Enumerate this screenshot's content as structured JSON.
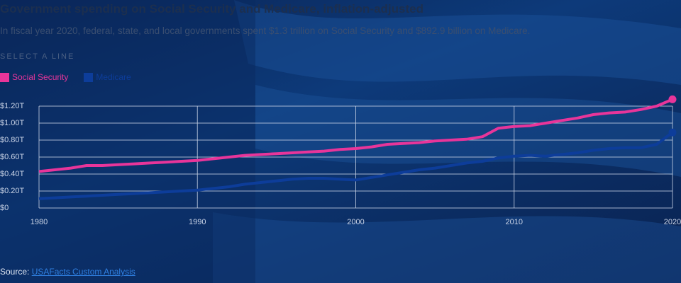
{
  "header": {
    "title": "Government spending on Social Security and Medicare, inflation-adjusted",
    "subtitle": "In fiscal year 2020, federal, state, and local governments spent $1.3 trillion on Social Security and $892.9 billion on Medicare.",
    "select_label": "SELECT A LINE"
  },
  "chart_data": {
    "type": "line",
    "x": [
      1980,
      1981,
      1982,
      1983,
      1984,
      1985,
      1986,
      1987,
      1988,
      1989,
      1990,
      1991,
      1992,
      1993,
      1994,
      1995,
      1996,
      1997,
      1998,
      1999,
      2000,
      2001,
      2002,
      2003,
      2004,
      2005,
      2006,
      2007,
      2008,
      2009,
      2010,
      2011,
      2012,
      2013,
      2014,
      2015,
      2016,
      2017,
      2018,
      2019,
      2020
    ],
    "series": [
      {
        "name": "Social Security",
        "color": "#e8359a",
        "values": [
          0.43,
          0.45,
          0.47,
          0.5,
          0.5,
          0.51,
          0.52,
          0.53,
          0.54,
          0.55,
          0.56,
          0.58,
          0.6,
          0.62,
          0.63,
          0.64,
          0.65,
          0.66,
          0.67,
          0.69,
          0.7,
          0.72,
          0.75,
          0.76,
          0.77,
          0.79,
          0.8,
          0.81,
          0.84,
          0.94,
          0.96,
          0.97,
          1.0,
          1.03,
          1.06,
          1.1,
          1.12,
          1.13,
          1.16,
          1.2,
          1.28
        ]
      },
      {
        "name": "Medicare",
        "color": "#0d3d9a",
        "values": [
          0.11,
          0.12,
          0.13,
          0.14,
          0.15,
          0.16,
          0.17,
          0.18,
          0.19,
          0.2,
          0.21,
          0.23,
          0.25,
          0.28,
          0.3,
          0.32,
          0.34,
          0.35,
          0.35,
          0.34,
          0.33,
          0.36,
          0.39,
          0.42,
          0.45,
          0.47,
          0.5,
          0.53,
          0.55,
          0.59,
          0.61,
          0.62,
          0.61,
          0.63,
          0.65,
          0.68,
          0.7,
          0.71,
          0.71,
          0.75,
          0.89
        ]
      }
    ],
    "xlim": [
      1980,
      2020
    ],
    "xticks": [
      1980,
      1990,
      2000,
      2010,
      2020
    ],
    "ylim": [
      0,
      1.2
    ],
    "yticks": [
      {
        "value": 0,
        "label": "$0"
      },
      {
        "value": 0.2,
        "label": "$0.20T"
      },
      {
        "value": 0.4,
        "label": "$0.40T"
      },
      {
        "value": 0.6,
        "label": "$0.60T"
      },
      {
        "value": 0.8,
        "label": "$0.80T"
      },
      {
        "value": 1.0,
        "label": "$1.00T"
      },
      {
        "value": 1.2,
        "label": "$1.20T"
      }
    ],
    "grid": true
  },
  "footer": {
    "source_label": "Source:",
    "source_link": "USAFacts Custom Analysis"
  }
}
